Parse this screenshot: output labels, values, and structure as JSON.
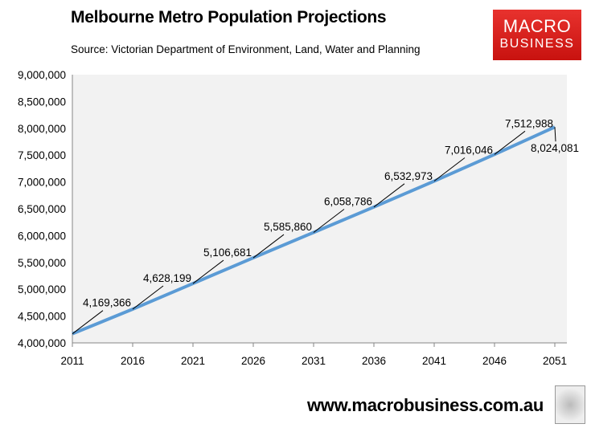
{
  "chart_data": {
    "type": "line",
    "title": "Melbourne Metro Population Projections",
    "subtitle": "Source: Victorian Department of Environment, Land, Water and Planning",
    "xlabel": "",
    "ylabel": "",
    "x": [
      2011,
      2016,
      2021,
      2026,
      2031,
      2036,
      2041,
      2046,
      2051
    ],
    "x_tick_labels": [
      "2011",
      "2016",
      "2021",
      "2026",
      "2031",
      "2036",
      "2041",
      "2046",
      "2051"
    ],
    "series": [
      {
        "name": "Population",
        "color": "#5b9bd5",
        "values": [
          4169366,
          4628199,
          5106681,
          5585860,
          6058786,
          6532973,
          7016046,
          7512988,
          8024081
        ]
      }
    ],
    "data_labels": [
      "4,169,366",
      "4,628,199",
      "5,106,681",
      "5,585,860",
      "6,058,786",
      "6,532,973",
      "7,016,046",
      "7,512,988",
      "8,024,081"
    ],
    "ylim": [
      4000000,
      9000000
    ],
    "y_tick_labels": [
      "4,000,000",
      "4,500,000",
      "5,000,000",
      "5,500,000",
      "6,000,000",
      "6,500,000",
      "7,000,000",
      "7,500,000",
      "8,000,000",
      "8,500,000",
      "9,000,000"
    ],
    "y_ticks": [
      4000000,
      4500000,
      5000000,
      5500000,
      6000000,
      6500000,
      7000000,
      7500000,
      8000000,
      8500000,
      9000000
    ],
    "grid": false,
    "legend": "none",
    "plot_background": "#f2f2f2"
  },
  "branding": {
    "logo_line1": "MACRO",
    "logo_line2": "BUSINESS",
    "logo_color": "#d9201d",
    "url": "www.macrobusiness.com.au"
  }
}
